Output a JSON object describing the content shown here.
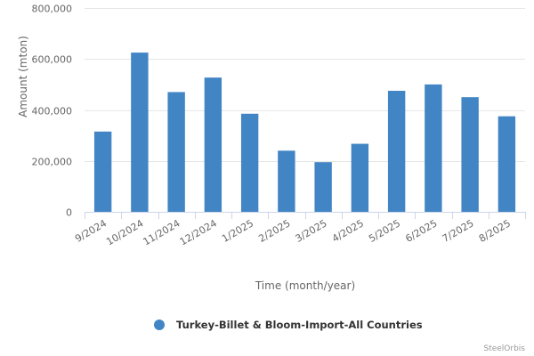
{
  "chart_data": {
    "type": "bar",
    "categories": [
      "9/2024",
      "10/2024",
      "11/2024",
      "12/2024",
      "1/2025",
      "2/2025",
      "3/2025",
      "4/2025",
      "5/2025",
      "6/2025",
      "7/2025",
      "8/2025"
    ],
    "series": [
      {
        "name": "Turkey-Billet & Bloom-Import-All Countries",
        "color": "#4285c4",
        "values": [
          315000,
          625000,
          470000,
          527000,
          385000,
          240000,
          195000,
          267000,
          475000,
          500000,
          450000,
          375000
        ]
      }
    ],
    "xlabel": "Time (month/year)",
    "ylabel": "Amount (mton)",
    "ylim": [
      0,
      800000
    ],
    "yticks": [
      "0",
      "200,000",
      "400,000",
      "600,000",
      "800,000"
    ],
    "ytick_values": [
      0,
      200000,
      400000,
      600000,
      800000
    ],
    "grid": true,
    "legend_position": "bottom-center",
    "credit": "SteelOrbis"
  }
}
